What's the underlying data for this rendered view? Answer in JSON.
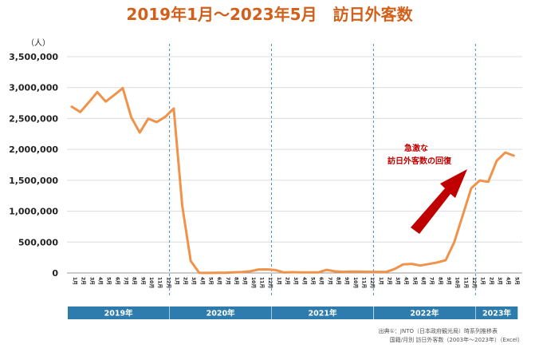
{
  "chart_data": {
    "type": "line",
    "title": "2019年1月〜2023年5月　訪日外客数",
    "ylabel": "（人）",
    "ylim": [
      0,
      3500000
    ],
    "yticks": [
      0,
      500000,
      1000000,
      1500000,
      2000000,
      2500000,
      3000000,
      3500000
    ],
    "ytick_labels": [
      "0",
      "500,000",
      "1,000,000",
      "1,500,000",
      "2,000,000",
      "2,500,000",
      "3,000,000",
      "3,500,000"
    ],
    "grid": true,
    "year_labels": [
      "2019年",
      "2020年",
      "2021年",
      "2022年",
      "2023年"
    ],
    "annotation": [
      "急激な",
      "訪日外客数の回復"
    ],
    "source_lines": [
      "出典①：JNTO（日本政府観光局）時系列推移表",
      "国籍/月別 訪日外客数（2003年〜2023年）（Excel）"
    ],
    "line_color": "#f0924a",
    "band_color": "#2e7cad",
    "arrow_color": "#c00000",
    "series": [
      {
        "values": [
          2690000,
          2604000,
          2760000,
          2927000,
          2773000,
          2880000,
          2991000,
          2520000,
          2272000,
          2497000,
          2441000,
          2527000,
          2661000,
          1085000,
          193700,
          2900,
          1700,
          2600,
          3800,
          8700,
          13700,
          27400,
          56700,
          58700,
          46500,
          7400,
          12300,
          10900,
          10000,
          9300,
          51000,
          25900,
          17700,
          22100,
          20700,
          17800,
          17800,
          16700,
          66100,
          139500,
          147000,
          120400,
          144500,
          169900,
          206500,
          498600,
          934500,
          1370000,
          1497000,
          1475000,
          1817000,
          1949000,
          1899000
        ]
      }
    ]
  }
}
